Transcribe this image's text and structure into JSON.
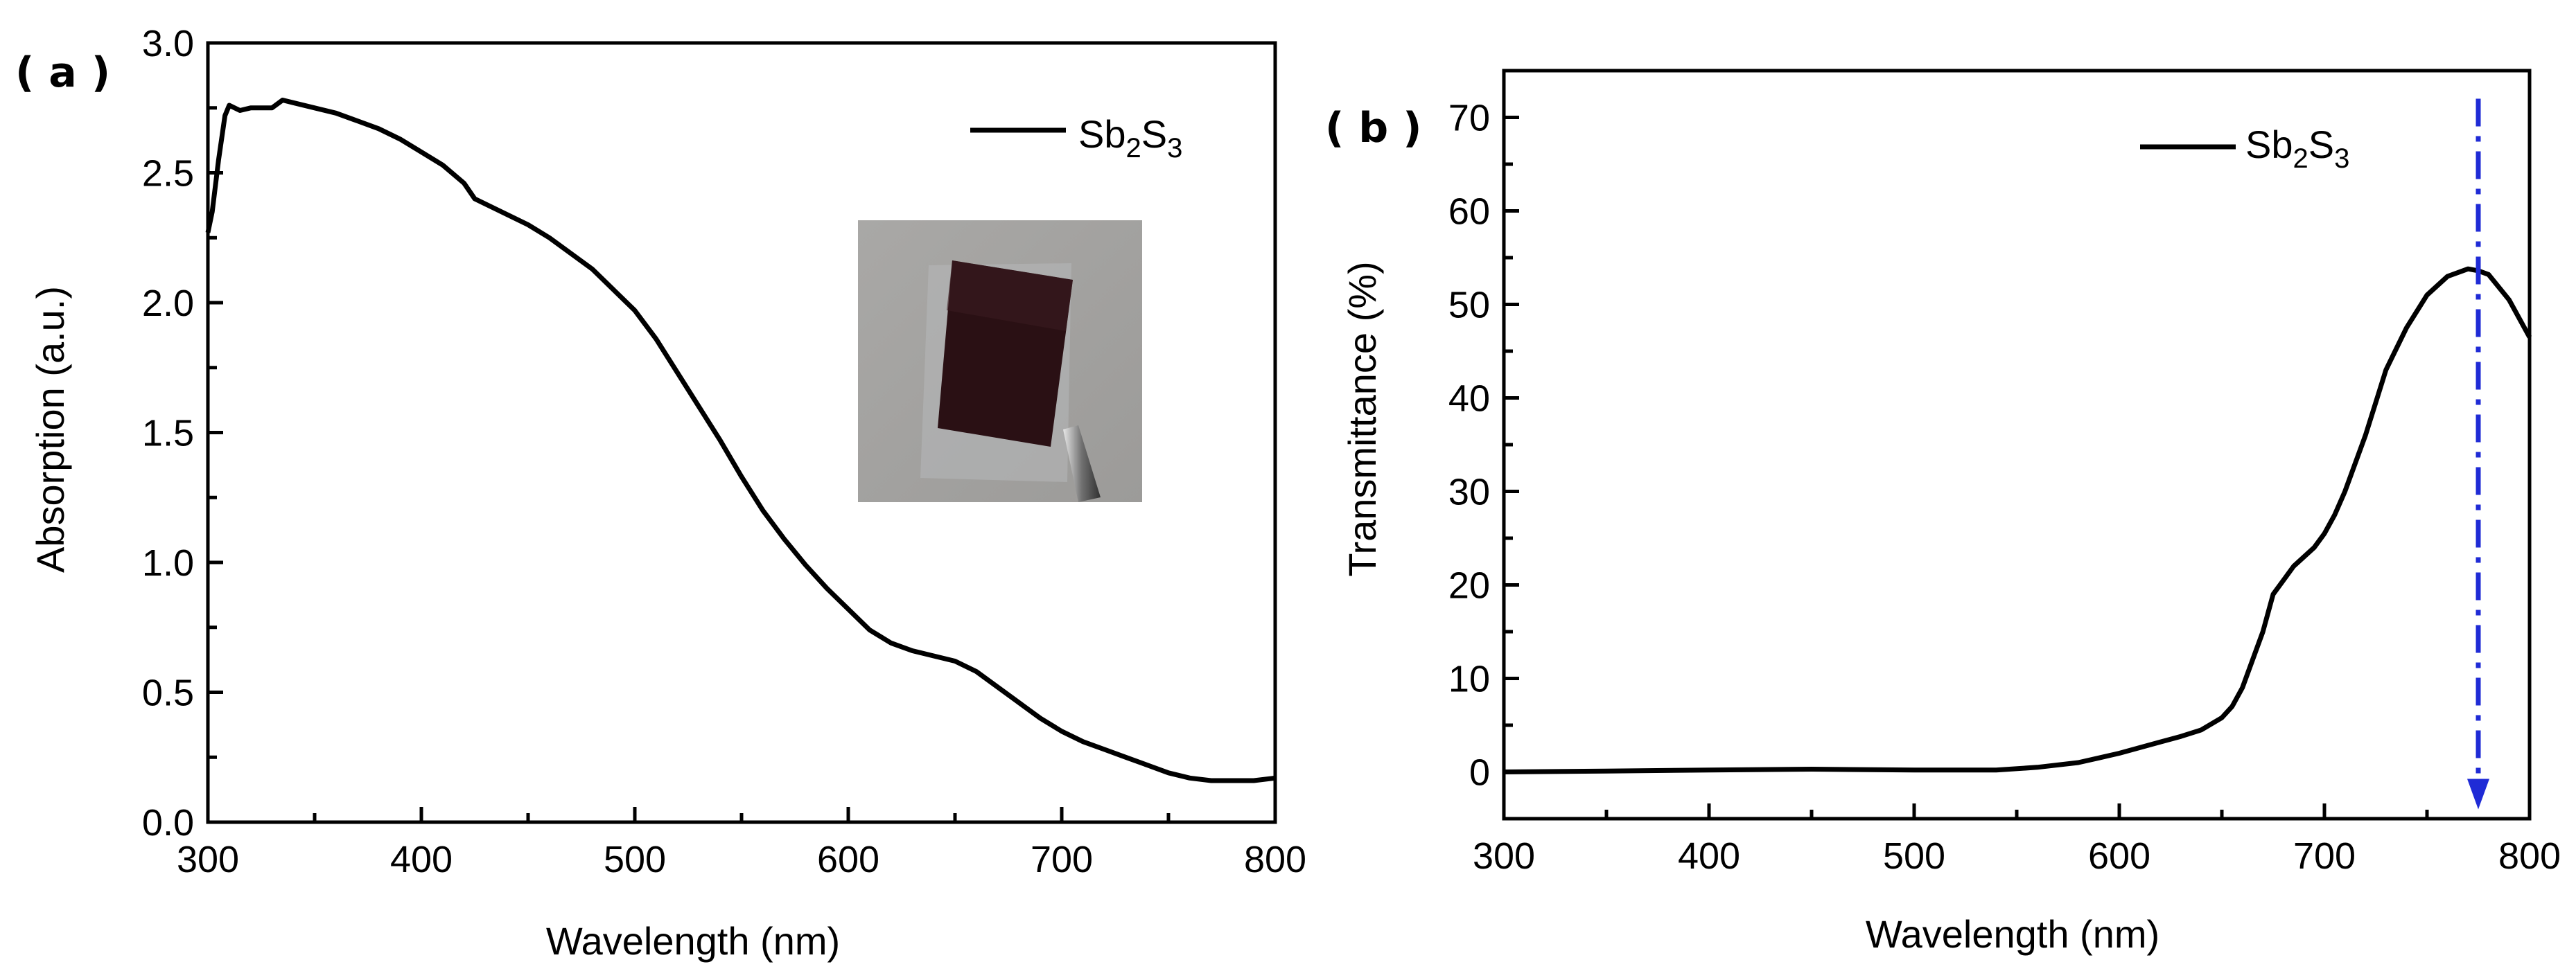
{
  "chart_data": [
    {
      "type": "line",
      "panel_label": "( a )",
      "title": "",
      "xlabel": "Wavelength (nm)",
      "ylabel": "Absorption (a.u.)",
      "xlim": [
        300,
        800
      ],
      "ylim": [
        0.0,
        3.0
      ],
      "xticks": [
        "300",
        "400",
        "500",
        "600",
        "700",
        "800"
      ],
      "yticks": [
        "0.0",
        "0.5",
        "1.0",
        "1.5",
        "2.0",
        "2.5",
        "3.0"
      ],
      "grid": false,
      "legend": {
        "position": "top-right",
        "base": "Sb",
        "sub1": "2",
        "mid": "S",
        "sub2": "3"
      },
      "inset": "photo of Sb2S3 film sample held by tweezers",
      "series": [
        {
          "name": "Sb2S3",
          "x": [
            300,
            302,
            305,
            308,
            310,
            315,
            320,
            330,
            335,
            340,
            350,
            360,
            370,
            380,
            390,
            400,
            410,
            420,
            425,
            430,
            440,
            450,
            460,
            470,
            480,
            490,
            500,
            510,
            520,
            530,
            540,
            550,
            560,
            570,
            580,
            590,
            600,
            610,
            620,
            630,
            640,
            650,
            660,
            670,
            680,
            690,
            700,
            710,
            720,
            730,
            740,
            750,
            760,
            770,
            780,
            790,
            800
          ],
          "values": [
            2.27,
            2.35,
            2.55,
            2.72,
            2.76,
            2.74,
            2.75,
            2.75,
            2.78,
            2.77,
            2.75,
            2.73,
            2.7,
            2.67,
            2.63,
            2.58,
            2.53,
            2.46,
            2.4,
            2.38,
            2.34,
            2.3,
            2.25,
            2.19,
            2.13,
            2.05,
            1.97,
            1.86,
            1.73,
            1.6,
            1.47,
            1.33,
            1.2,
            1.09,
            0.99,
            0.9,
            0.82,
            0.74,
            0.69,
            0.66,
            0.64,
            0.62,
            0.58,
            0.52,
            0.46,
            0.4,
            0.35,
            0.31,
            0.28,
            0.25,
            0.22,
            0.19,
            0.17,
            0.16,
            0.16,
            0.16,
            0.17
          ]
        }
      ]
    },
    {
      "type": "line",
      "panel_label": "( b )",
      "title": "",
      "xlabel": "Wavelength (nm)",
      "ylabel": "Transmittance (%)",
      "xlim": [
        300,
        800
      ],
      "ylim": [
        -5,
        75
      ],
      "xticks": [
        "300",
        "400",
        "500",
        "600",
        "700",
        "800"
      ],
      "yticks": [
        "0",
        "10",
        "20",
        "30",
        "40",
        "50",
        "60",
        "70"
      ],
      "grid": false,
      "legend": {
        "position": "top-right",
        "base": "Sb",
        "sub1": "2",
        "mid": "S",
        "sub2": "3"
      },
      "annotation": {
        "type": "dash-dot vertical arrow",
        "x": 775,
        "y_from": 72,
        "y_to": -4,
        "color": "#1f2bd6"
      },
      "series": [
        {
          "name": "Sb2S3",
          "x": [
            300,
            350,
            400,
            450,
            500,
            540,
            560,
            580,
            590,
            600,
            610,
            620,
            630,
            640,
            650,
            655,
            660,
            665,
            670,
            675,
            680,
            685,
            690,
            695,
            700,
            705,
            710,
            715,
            720,
            725,
            730,
            740,
            750,
            760,
            770,
            775,
            780,
            790,
            800
          ],
          "values": [
            0.0,
            0.1,
            0.2,
            0.3,
            0.2,
            0.2,
            0.5,
            1.0,
            1.5,
            2.0,
            2.6,
            3.2,
            3.8,
            4.5,
            5.8,
            7.0,
            9.0,
            12.0,
            15.0,
            19.0,
            20.5,
            22.0,
            23.0,
            24.0,
            25.5,
            27.5,
            30.0,
            33.0,
            36.0,
            39.5,
            43.0,
            47.5,
            51.0,
            53.0,
            53.8,
            53.6,
            53.2,
            50.5,
            46.5
          ]
        }
      ]
    }
  ]
}
